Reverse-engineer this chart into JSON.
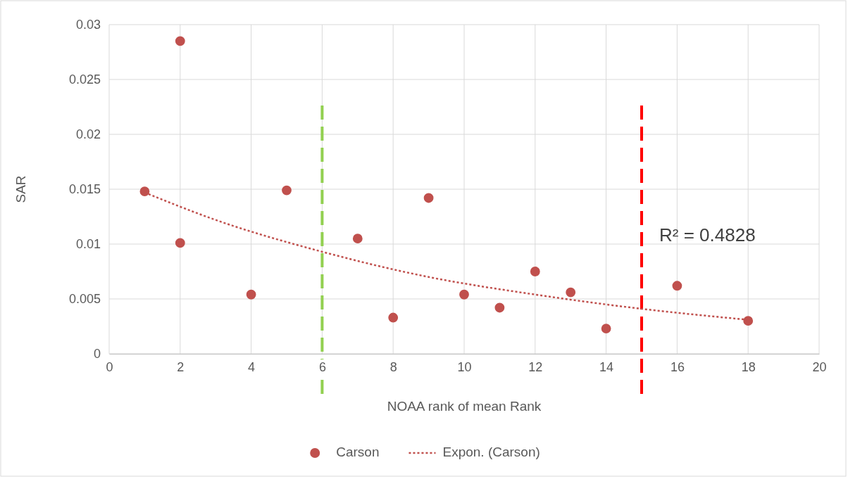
{
  "chart_data": {
    "type": "scatter",
    "xlabel": "NOAA rank of mean Rank",
    "ylabel": "SAR",
    "xlim": [
      0,
      20
    ],
    "xticks": [
      0,
      2,
      4,
      6,
      8,
      10,
      12,
      14,
      16,
      18,
      20
    ],
    "ylim": [
      0,
      0.03
    ],
    "yticks": [
      0,
      0.005,
      0.01,
      0.015,
      0.02,
      0.025,
      0.03
    ],
    "grid": true,
    "legend": "bottom",
    "series": [
      {
        "name": "Carson",
        "marker": "circle",
        "color": "#c0504d",
        "x": [
          1,
          2,
          2,
          4,
          5,
          7,
          8,
          9,
          10,
          11,
          12,
          13,
          14,
          16,
          18
        ],
        "values": [
          0.0148,
          0.0285,
          0.0101,
          0.0054,
          0.0149,
          0.0105,
          0.0033,
          0.0142,
          0.0054,
          0.0042,
          0.0075,
          0.0056,
          0.0023,
          0.0062,
          0.003
        ]
      },
      {
        "name": "Expon. (Carson)",
        "type": "line",
        "marker": "none",
        "line_style": "dotted",
        "color": "#c0504d",
        "x": [
          1,
          3,
          6,
          9,
          12,
          15,
          18
        ],
        "values": [
          0.0147,
          0.0122,
          0.0093,
          0.007,
          0.0054,
          0.0041,
          0.0031
        ]
      }
    ],
    "ref_lines": [
      {
        "axis": "x",
        "value": 6,
        "color": "#92d050",
        "line_style": "dashed"
      },
      {
        "axis": "x",
        "value": 15,
        "color": "#ff0000",
        "line_style": "dashed"
      }
    ],
    "annotations": [
      "R² = 0.4828"
    ]
  }
}
